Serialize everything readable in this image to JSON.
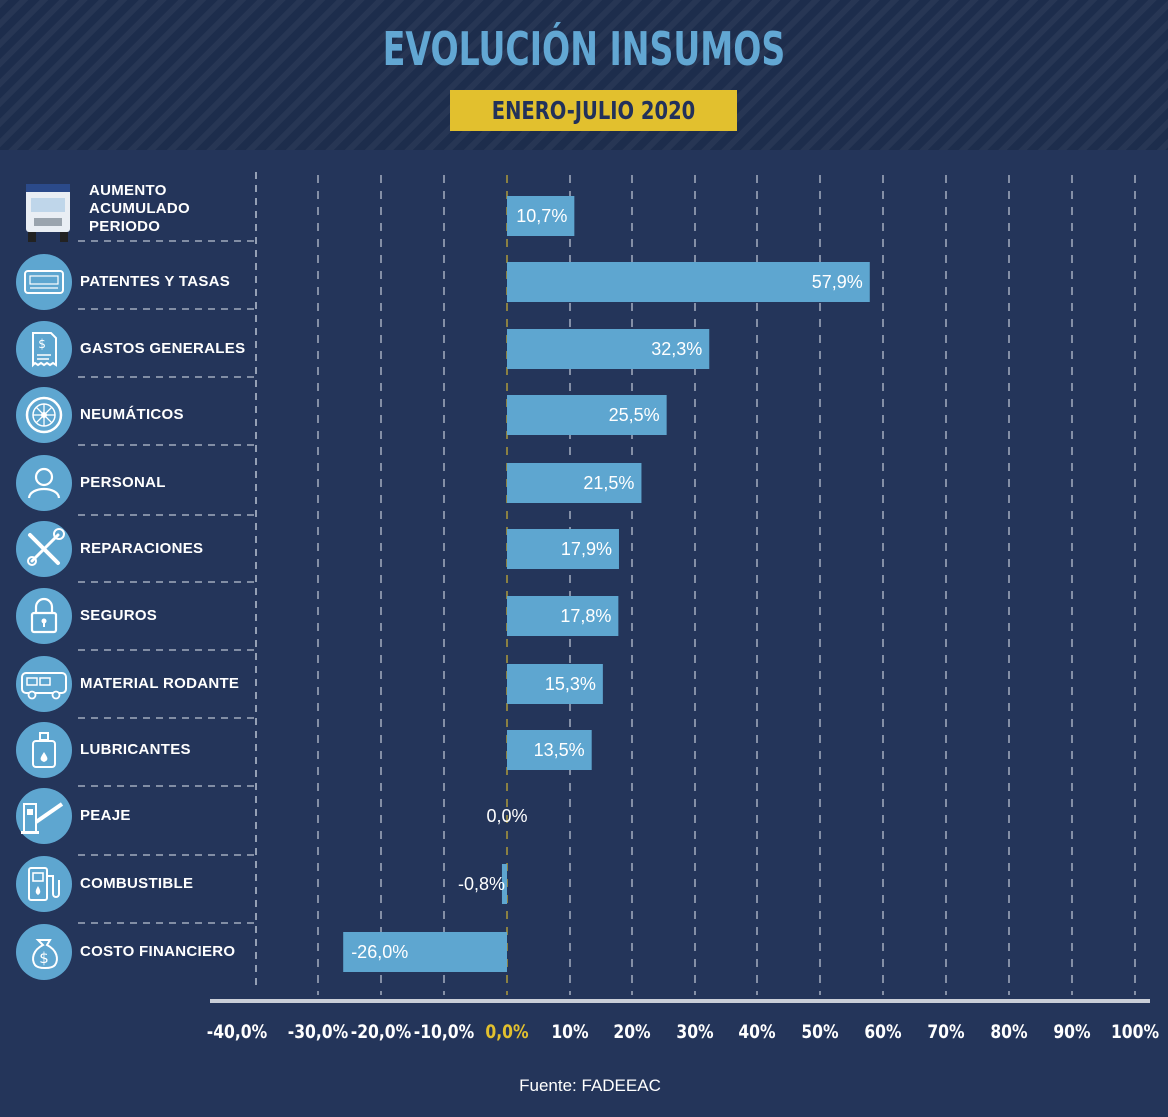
{
  "title": "EVOLUCIÓN INSUMOS",
  "subtitle": "ENERO-JULIO 2020",
  "source": "Fuente: FADEEAC",
  "colors": {
    "background": "#24355a",
    "bar": "#5ea6d0",
    "title": "#62a7d3",
    "subtitle_box": "#e2c02e",
    "zero_tick": "#e2c02e"
  },
  "chart_data": {
    "type": "bar",
    "orientation": "horizontal",
    "title": "EVOLUCIÓN INSUMOS",
    "subtitle": "ENERO-JULIO 2020",
    "categories": [
      "AUMENTO ACUMULADO PERIODO",
      "PATENTES Y TASAS",
      "GASTOS GENERALES",
      "NEUMÁTICOS",
      "PERSONAL",
      "REPARACIONES",
      "SEGUROS",
      "MATERIAL RODANTE",
      "LUBRICANTES",
      "PEAJE",
      "COMBUSTIBLE",
      "COSTO FINANCIERO"
    ],
    "values": [
      10.7,
      57.9,
      32.3,
      25.5,
      21.5,
      17.9,
      17.8,
      15.3,
      13.5,
      0.0,
      -0.8,
      -26.0
    ],
    "value_labels": [
      "10,7%",
      "57,9%",
      "32,3%",
      "25,5%",
      "21,5%",
      "17,9%",
      "17,8%",
      "15,3%",
      "13,5%",
      "0,0%",
      "-0,8%",
      "-26,0%"
    ],
    "icons": [
      "truck-icon",
      "license-plate-icon",
      "receipt-icon",
      "tire-icon",
      "person-icon",
      "tools-icon",
      "padlock-icon",
      "bus-icon",
      "oil-can-icon",
      "toll-barrier-icon",
      "fuel-pump-icon",
      "money-bag-icon"
    ],
    "xlim": [
      -40,
      100
    ],
    "x_ticks": [
      -40,
      -30,
      -20,
      -10,
      0,
      10,
      20,
      30,
      40,
      50,
      60,
      70,
      80,
      90,
      100
    ],
    "x_tick_labels": [
      "-40,0%",
      "-30,0%",
      "-20,0%",
      "-10,0%",
      "0,0%",
      "10%",
      "20%",
      "30%",
      "40%",
      "50%",
      "60%",
      "70%",
      "80%",
      "90%",
      "100%"
    ],
    "grid": true,
    "legend": "none"
  }
}
